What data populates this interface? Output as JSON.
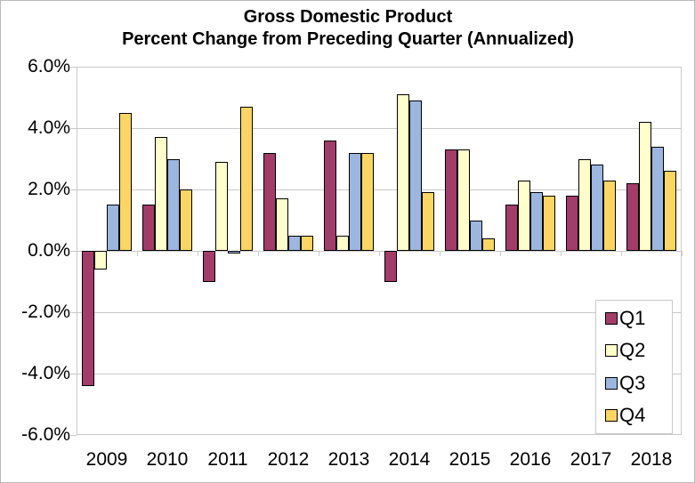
{
  "title": {
    "line1": "Gross Domestic Product",
    "line2": "Percent Change from Preceding Quarter (Annualized)"
  },
  "chart_data": {
    "type": "bar",
    "title": "Gross Domestic Product",
    "subtitle": "Percent Change from Preceding Quarter (Annualized)",
    "categories": [
      "2009",
      "2010",
      "2011",
      "2012",
      "2013",
      "2014",
      "2015",
      "2016",
      "2017",
      "2018"
    ],
    "series": [
      {
        "name": "Q1",
        "color": "#a23c69",
        "values": [
          -4.4,
          1.5,
          -1.0,
          3.2,
          3.6,
          -1.0,
          3.3,
          1.5,
          1.8,
          2.2
        ]
      },
      {
        "name": "Q2",
        "color": "#ffffcc",
        "values": [
          -0.6,
          3.7,
          2.9,
          1.7,
          0.5,
          5.1,
          3.3,
          2.3,
          3.0,
          4.2
        ]
      },
      {
        "name": "Q3",
        "color": "#9cb6e0",
        "values": [
          1.5,
          3.0,
          -0.1,
          0.5,
          3.2,
          4.9,
          1.0,
          1.9,
          2.8,
          3.4
        ]
      },
      {
        "name": "Q4",
        "color": "#fbd665",
        "values": [
          4.5,
          2.0,
          4.7,
          0.5,
          3.2,
          1.9,
          0.4,
          1.8,
          2.3,
          2.6
        ]
      }
    ],
    "y_ticks": [
      "6.0%",
      "4.0%",
      "2.0%",
      "0.0%",
      "-2.0%",
      "-4.0%",
      "-6.0%"
    ],
    "ylim": [
      -6.0,
      6.0
    ],
    "grid": true,
    "gridline_color": "#c9c9c9",
    "bar_outline_color": "#000000",
    "legend_position": "bottom-right-overlay"
  },
  "legend": {
    "items": [
      {
        "label": "Q1",
        "color": "#a23c69"
      },
      {
        "label": "Q2",
        "color": "#ffffcc"
      },
      {
        "label": "Q3",
        "color": "#9cb6e0"
      },
      {
        "label": "Q4",
        "color": "#fbd665"
      }
    ]
  }
}
